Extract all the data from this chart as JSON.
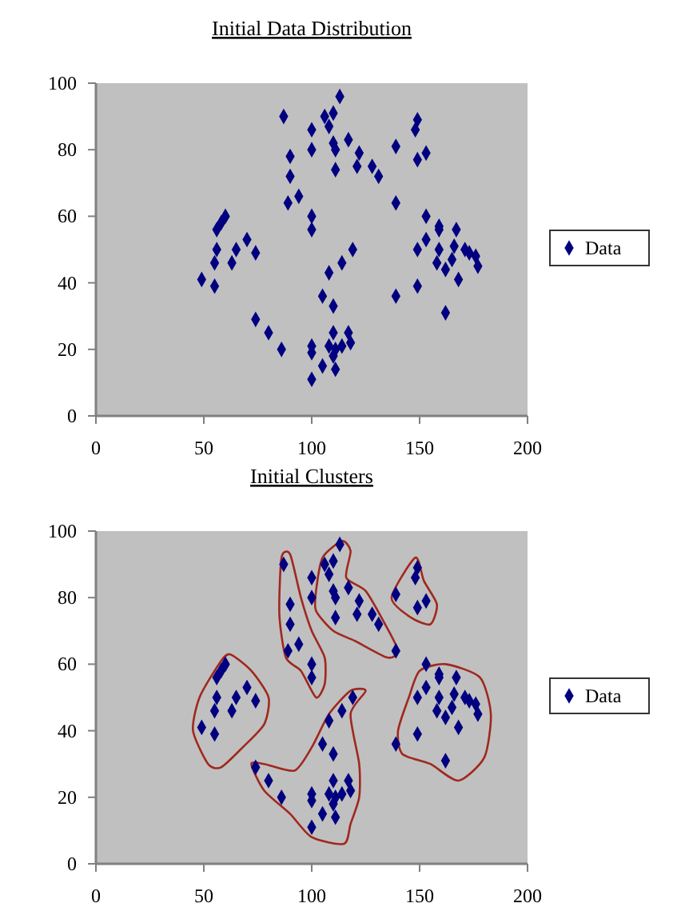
{
  "chart_data": [
    {
      "type": "scatter",
      "title": "Initial Data Distribution",
      "xlim": [
        0,
        200
      ],
      "ylim": [
        0,
        100
      ],
      "xticks": [
        0,
        50,
        100,
        150,
        200
      ],
      "yticks": [
        0,
        20,
        40,
        60,
        80,
        100
      ],
      "grid": false,
      "legend": "right",
      "marker": "diamond",
      "series": [
        {
          "name": "Data",
          "color": "#000080",
          "x": [
            87,
            113,
            106,
            110,
            108,
            100,
            110,
            111,
            117,
            100,
            90,
            90,
            122,
            121,
            111,
            128,
            131,
            139,
            149,
            148,
            149,
            153,
            89,
            94,
            139,
            60,
            58,
            56,
            56,
            55,
            63,
            65,
            70,
            74,
            49,
            55,
            74,
            80,
            86,
            100,
            100,
            119,
            114,
            108,
            105,
            110,
            110,
            117,
            100,
            100,
            108,
            111,
            114,
            118,
            110,
            105,
            111,
            100,
            139,
            149,
            149,
            153,
            153,
            159,
            159,
            159,
            158,
            162,
            165,
            166,
            167,
            171,
            168,
            162,
            173,
            176,
            177
          ],
          "values": [
            90,
            96,
            90,
            91,
            87,
            86,
            82,
            80,
            83,
            80,
            78,
            72,
            79,
            75,
            74,
            75,
            72,
            81,
            89,
            86,
            77,
            79,
            64,
            66,
            64,
            60,
            58,
            56,
            50,
            46,
            46,
            50,
            53,
            49,
            41,
            39,
            29,
            25,
            20,
            60,
            56,
            50,
            46,
            43,
            36,
            33,
            25,
            25,
            21,
            19,
            21,
            20,
            21,
            22,
            18,
            15,
            14,
            11,
            36,
            39,
            50,
            53,
            60,
            57,
            56,
            50,
            46,
            44,
            47,
            51,
            56,
            50,
            41,
            31,
            49,
            48,
            45
          ]
        }
      ]
    },
    {
      "type": "scatter",
      "title": "Initial Clusters",
      "xlim": [
        0,
        200
      ],
      "ylim": [
        0,
        100
      ],
      "xticks": [
        0,
        50,
        100,
        150,
        200
      ],
      "yticks": [
        0,
        20,
        40,
        60,
        80,
        100
      ],
      "grid": false,
      "legend": "right",
      "marker": "diamond",
      "series": [
        {
          "name": "Data",
          "color": "#000080",
          "x": [
            87,
            113,
            106,
            110,
            108,
            100,
            110,
            111,
            117,
            100,
            90,
            90,
            122,
            121,
            111,
            128,
            131,
            139,
            149,
            148,
            149,
            153,
            89,
            94,
            139,
            60,
            58,
            56,
            56,
            55,
            63,
            65,
            70,
            74,
            49,
            55,
            74,
            80,
            86,
            100,
            100,
            119,
            114,
            108,
            105,
            110,
            110,
            117,
            100,
            100,
            108,
            111,
            114,
            118,
            110,
            105,
            111,
            100,
            139,
            149,
            149,
            153,
            153,
            159,
            159,
            159,
            158,
            162,
            165,
            166,
            167,
            171,
            168,
            162,
            173,
            176,
            177
          ],
          "values": [
            90,
            96,
            90,
            91,
            87,
            86,
            82,
            80,
            83,
            80,
            78,
            72,
            79,
            75,
            74,
            75,
            72,
            81,
            89,
            86,
            77,
            79,
            64,
            66,
            64,
            60,
            58,
            56,
            50,
            46,
            46,
            50,
            53,
            49,
            41,
            39,
            29,
            25,
            20,
            60,
            56,
            50,
            46,
            43,
            36,
            33,
            25,
            25,
            21,
            19,
            21,
            20,
            21,
            22,
            18,
            15,
            14,
            11,
            36,
            39,
            50,
            53,
            60,
            57,
            56,
            50,
            46,
            44,
            47,
            51,
            56,
            50,
            41,
            31,
            49,
            48,
            45
          ]
        }
      ]
    }
  ]
}
